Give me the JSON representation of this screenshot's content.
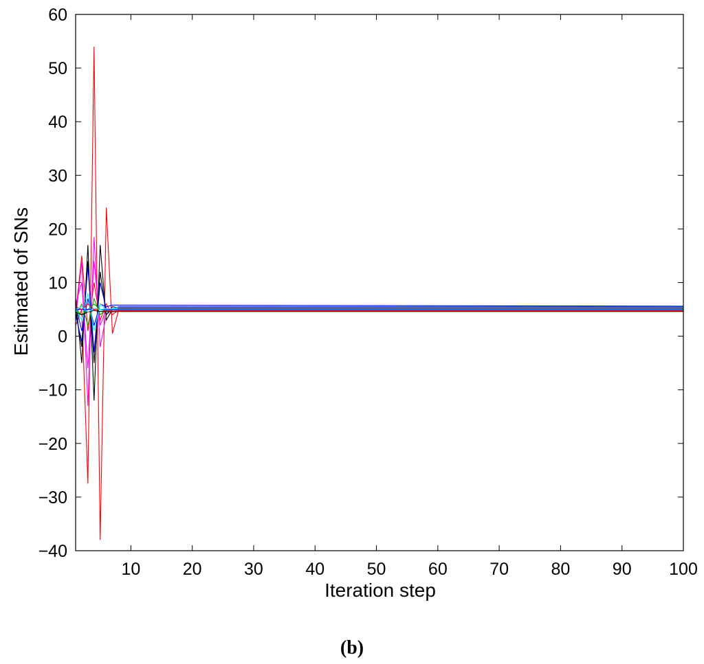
{
  "caption": "(b)",
  "chart_data": {
    "type": "line",
    "title": "",
    "xlabel": "Iteration step",
    "ylabel": "Estimated of SNs",
    "xlim": [
      1,
      100
    ],
    "ylim": [
      -40,
      60
    ],
    "xticks": [
      10,
      20,
      30,
      40,
      50,
      60,
      70,
      80,
      90,
      100
    ],
    "yticks": [
      -40,
      -30,
      -20,
      -10,
      0,
      10,
      20,
      30,
      40,
      50,
      60
    ],
    "grid": false,
    "legend": "none",
    "series": [
      {
        "color": "#ff0000",
        "x": [
          1,
          2,
          3,
          4,
          5,
          6,
          7,
          8,
          10,
          100
        ],
        "y": [
          2,
          5,
          -27.5,
          54,
          -38,
          24,
          0.5,
          4.8,
          4.8,
          4.8
        ]
      },
      {
        "color": "#ff0000",
        "x": [
          1,
          2,
          3,
          4,
          5,
          6,
          7,
          8,
          10,
          100
        ],
        "y": [
          4,
          15,
          1,
          10,
          3,
          6,
          4,
          4.9,
          5,
          5
        ]
      },
      {
        "color": "#ff00ff",
        "x": [
          1,
          2,
          3,
          4,
          5,
          6,
          7,
          8,
          10,
          100
        ],
        "y": [
          3,
          14,
          -13,
          18.5,
          -2,
          4,
          5,
          5.1,
          5.2,
          5.2
        ]
      },
      {
        "color": "#ff00ff",
        "x": [
          1,
          2,
          3,
          4,
          5,
          6,
          7,
          8,
          10,
          100
        ],
        "y": [
          6,
          10,
          -6,
          14,
          2,
          5,
          4.5,
          5,
          4.9,
          4.9
        ]
      },
      {
        "color": "#000000",
        "x": [
          1,
          2,
          3,
          4,
          5,
          6,
          7,
          8,
          10,
          100
        ],
        "y": [
          7,
          -5,
          17,
          -12,
          17,
          3,
          5,
          5.2,
          5.2,
          5.2
        ]
      },
      {
        "color": "#000000",
        "x": [
          1,
          2,
          3,
          4,
          5,
          6,
          7,
          8,
          10,
          100
        ],
        "y": [
          5,
          -2,
          14,
          -5,
          12,
          4,
          5.5,
          5.3,
          5.3,
          5.3
        ]
      },
      {
        "color": "#0000ff",
        "x": [
          1,
          2,
          3,
          4,
          5,
          6,
          7,
          8,
          10,
          100
        ],
        "y": [
          4,
          -1,
          13,
          -3,
          10,
          5,
          5,
          5.5,
          5.5,
          5.5
        ]
      },
      {
        "color": "#0000ff",
        "x": [
          1,
          2,
          3,
          4,
          5,
          6,
          7,
          8,
          10,
          100
        ],
        "y": [
          6,
          1,
          7,
          2,
          6,
          5.5,
          5.8,
          5.8,
          5.8,
          5.6
        ]
      },
      {
        "color": "#00ffff",
        "x": [
          1,
          2,
          3,
          4,
          5,
          6,
          7,
          8,
          10,
          100
        ],
        "y": [
          5,
          3,
          8,
          1,
          6,
          5,
          5.2,
          5.4,
          5.4,
          5.4
        ]
      },
      {
        "color": "#00aa00",
        "x": [
          1,
          2,
          3,
          4,
          5,
          6,
          7,
          8,
          10,
          100
        ],
        "y": [
          4,
          6,
          2,
          7,
          4,
          5,
          5.1,
          5.1,
          5.1,
          5.1
        ]
      },
      {
        "color": "#00aa00",
        "x": [
          1,
          2,
          3,
          4,
          5,
          6,
          7,
          8,
          10,
          100
        ],
        "y": [
          5,
          4,
          5,
          6,
          5,
          4.8,
          4.9,
          4.9,
          4.9,
          4.9
        ]
      },
      {
        "color": "#000000",
        "x": [
          1,
          2,
          3,
          4,
          5,
          6,
          7,
          8,
          10,
          100
        ],
        "y": [
          4.5,
          4,
          4.5,
          4.8,
          4.6,
          4.6,
          4.6,
          4.6,
          4.6,
          4.6
        ]
      },
      {
        "color": "#0000ff",
        "x": [
          1,
          2,
          3,
          4,
          5,
          6,
          7,
          8,
          10,
          100
        ],
        "y": [
          5,
          5,
          5,
          5,
          5,
          5,
          5,
          5,
          5,
          5
        ]
      },
      {
        "color": "#ff0000",
        "x": [
          1,
          2,
          3,
          4,
          5,
          6,
          7,
          8,
          10,
          100
        ],
        "y": [
          5.5,
          5,
          6,
          5,
          5,
          4.7,
          4.7,
          4.7,
          4.7,
          4.7
        ]
      },
      {
        "color": "#00ffff",
        "x": [
          1,
          2,
          3,
          4,
          5,
          6,
          7,
          8,
          10,
          100
        ],
        "y": [
          5,
          5.5,
          4.5,
          5.2,
          5,
          5.1,
          5.1,
          5.1,
          5.1,
          5.1
        ]
      }
    ]
  }
}
